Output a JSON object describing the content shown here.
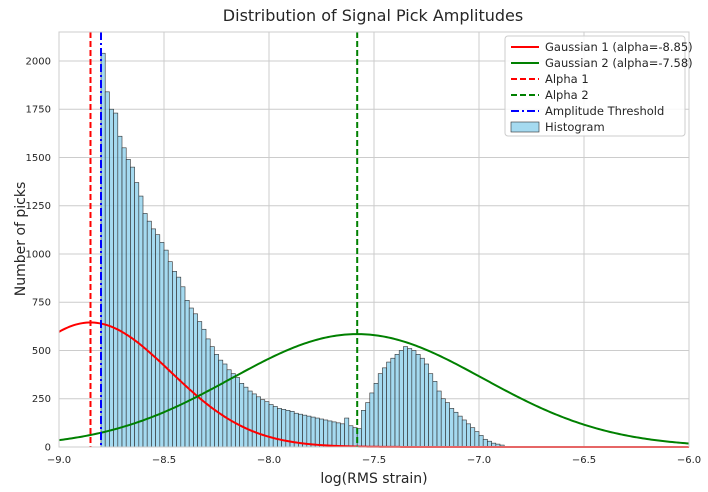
{
  "chart_data": {
    "type": "bar",
    "title": "Distribution of Signal Pick Amplitudes",
    "xlabel": "log(RMS strain)",
    "ylabel": "Number of picks",
    "xlim": [
      -9.0,
      -6.0
    ],
    "ylim": [
      0,
      2150
    ],
    "x_ticks": [
      -9.0,
      -8.5,
      -8.0,
      -7.5,
      -7.0,
      -6.5,
      -6.0
    ],
    "x_tick_labels": [
      "−9.0",
      "−8.5",
      "−8.0",
      "−7.5",
      "−7.0",
      "−6.5",
      "−6.0"
    ],
    "y_ticks": [
      0,
      250,
      500,
      750,
      1000,
      1250,
      1500,
      1750,
      2000
    ],
    "y_tick_labels": [
      "0",
      "250",
      "500",
      "750",
      "1000",
      "1250",
      "1500",
      "1750",
      "2000"
    ],
    "grid": true,
    "legend_position": "top-right",
    "colors": {
      "bar_fill": "#87ceeb",
      "bar_edge": "#2f2f2f",
      "gaussian1": "#ff0000",
      "gaussian2": "#008000",
      "alpha1": "#ff0000",
      "alpha2": "#008000",
      "threshold": "#0000ff",
      "grid": "#cccccc",
      "frame": "#cccccc"
    },
    "histogram": {
      "name": "Histogram",
      "bin_start": -8.8,
      "bin_width": 0.02,
      "values": [
        2040,
        1840,
        1750,
        1730,
        1610,
        1550,
        1490,
        1450,
        1370,
        1300,
        1210,
        1170,
        1130,
        1100,
        1060,
        1020,
        960,
        910,
        880,
        830,
        760,
        720,
        690,
        650,
        610,
        560,
        520,
        480,
        450,
        430,
        400,
        380,
        360,
        330,
        310,
        290,
        275,
        260,
        245,
        235,
        220,
        210,
        200,
        195,
        190,
        185,
        175,
        170,
        165,
        160,
        155,
        150,
        145,
        140,
        135,
        130,
        125,
        120,
        150,
        110,
        100,
        95,
        190,
        230,
        280,
        330,
        380,
        410,
        440,
        460,
        480,
        500,
        520,
        510,
        500,
        480,
        460,
        430,
        380,
        340,
        290,
        250,
        230,
        200,
        180,
        160,
        140,
        120,
        100,
        80,
        60,
        40,
        30,
        20,
        15,
        10
      ]
    },
    "series": [
      {
        "name": "Gaussian 1 (alpha=-8.85)",
        "kind": "gaussian",
        "mean": -8.85,
        "sigma": 0.38,
        "amplitude": 645
      },
      {
        "name": "Gaussian 2 (alpha=-7.58)",
        "kind": "gaussian",
        "mean": -7.58,
        "sigma": 0.6,
        "amplitude": 585
      }
    ],
    "vlines": [
      {
        "name": "Alpha 1",
        "x": -8.85,
        "style": "dashed"
      },
      {
        "name": "Alpha 2",
        "x": -7.58,
        "style": "dashed"
      },
      {
        "name": "Amplitude Threshold",
        "x": -8.8,
        "style": "dashdot"
      }
    ]
  }
}
